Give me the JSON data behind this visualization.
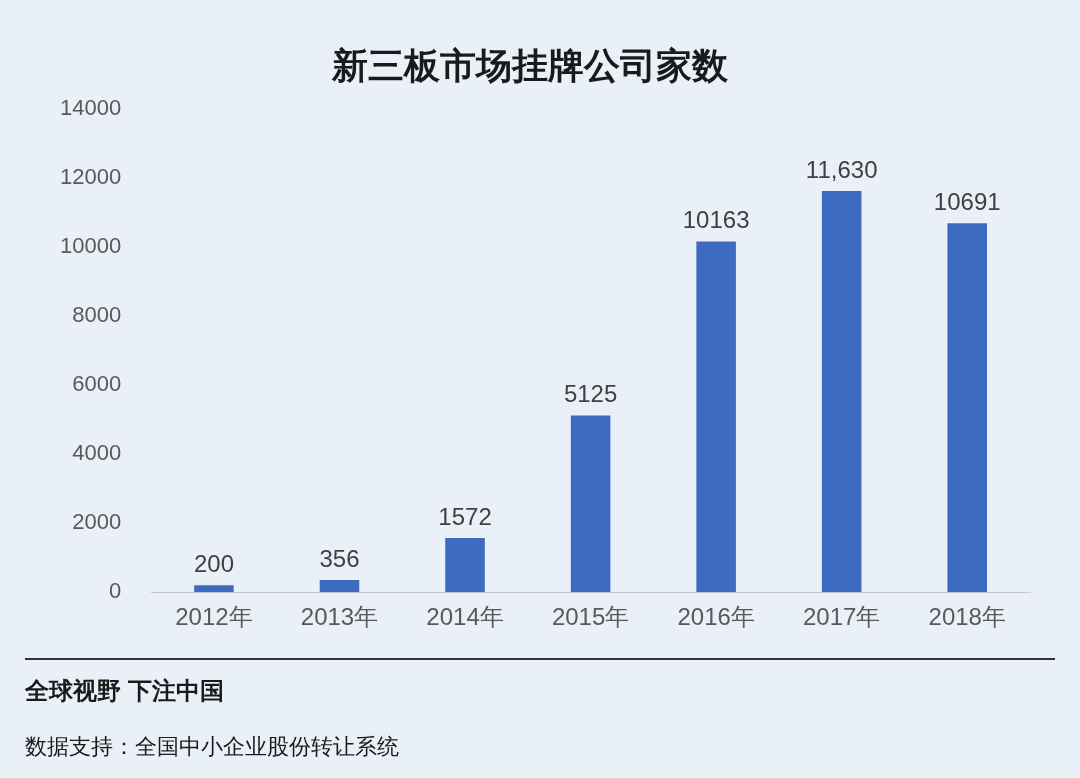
{
  "chart_data": {
    "type": "bar",
    "title": "新三板市场挂牌公司家数",
    "categories": [
      "2012年",
      "2013年",
      "2014年",
      "2015年",
      "2016年",
      "2017年",
      "2018年"
    ],
    "values": [
      200,
      356,
      1572,
      5125,
      10163,
      11630,
      10691
    ],
    "value_labels": [
      "200",
      "356",
      "1572",
      "5125",
      "10163",
      "11,630",
      "10691"
    ],
    "color": "#3d6bbf",
    "ylim": [
      0,
      14000
    ],
    "yticks": [
      0,
      2000,
      4000,
      6000,
      8000,
      10000,
      12000,
      14000
    ],
    "grid": false,
    "legend": false,
    "annotations": [
      "全球视野 下注中国",
      "数据支持：全国中小企业股份转让系统"
    ]
  }
}
